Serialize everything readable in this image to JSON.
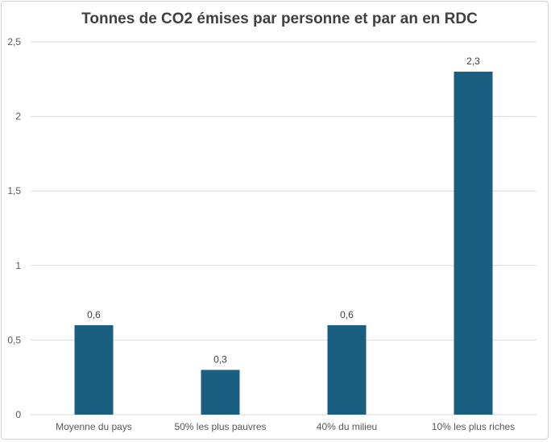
{
  "chart_data": {
    "type": "bar",
    "title": "Tonnes de CO2 émises par personne et par an en RDC",
    "categories": [
      "Moyenne du pays",
      "50% les plus pauvres",
      "40% du milieu",
      "10% les plus riches"
    ],
    "values": [
      0.6,
      0.3,
      0.6,
      2.3
    ],
    "value_labels": [
      "0,6",
      "0,3",
      "0,6",
      "2,3"
    ],
    "xlabel": "",
    "ylabel": "",
    "ylim": [
      0,
      2.5
    ],
    "y_ticks": [
      0,
      0.5,
      1,
      1.5,
      2,
      2.5
    ],
    "y_tick_labels": [
      "0",
      "0,5",
      "1",
      "1,5",
      "2",
      "2,5"
    ],
    "grid": true,
    "legend": "none",
    "bar_color": "#1a5e82",
    "grid_color": "#d9d9d9"
  }
}
